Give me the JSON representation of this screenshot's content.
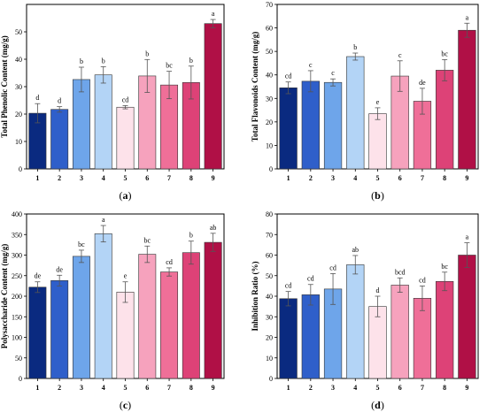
{
  "chart_data": [
    {
      "type": "bar",
      "panel_label": "(a)",
      "ylabel": "Total Phenolic Content (mg/g)",
      "categories": [
        "1",
        "2",
        "3",
        "4",
        "5",
        "6",
        "7",
        "8",
        "9"
      ],
      "values": [
        20.3,
        21.7,
        32.6,
        34.3,
        22.5,
        33.9,
        30.6,
        31.5,
        53.0
      ],
      "errors": [
        3.5,
        1.0,
        4.5,
        3.0,
        0.6,
        6.0,
        5.0,
        6.0,
        1.5
      ],
      "significance": [
        "d",
        "d",
        "b",
        "b",
        "cd",
        "b",
        "bc",
        "b",
        "a"
      ],
      "ylim": [
        0,
        60
      ],
      "yticks": [
        0,
        10,
        20,
        30,
        40,
        50
      ],
      "colors": [
        "#0a2a80",
        "#2f5fca",
        "#6ea5ea",
        "#b3d4f6",
        "#fde2ea",
        "#f6a2bd",
        "#ef6f98",
        "#dd4277",
        "#b01046"
      ]
    },
    {
      "type": "bar",
      "panel_label": "(b)",
      "ylabel": "Total Flavonoids Content (mg/g)",
      "categories": [
        "1",
        "2",
        "3",
        "4",
        "5",
        "6",
        "7",
        "8",
        "9"
      ],
      "values": [
        34.5,
        37.3,
        36.8,
        47.8,
        23.5,
        39.5,
        28.8,
        42.0,
        59.0
      ],
      "errors": [
        2.5,
        4.5,
        1.5,
        1.5,
        2.5,
        6.5,
        5.5,
        4.5,
        3.0
      ],
      "significance": [
        "cd",
        "c",
        "c",
        "b",
        "e",
        "c",
        "de",
        "bc",
        "a"
      ],
      "ylim": [
        0,
        70
      ],
      "yticks": [
        0,
        10,
        20,
        30,
        40,
        50,
        60,
        70
      ],
      "colors": [
        "#0a2a80",
        "#2f5fca",
        "#6ea5ea",
        "#b3d4f6",
        "#fde2ea",
        "#f6a2bd",
        "#ef6f98",
        "#dd4277",
        "#b01046"
      ]
    },
    {
      "type": "bar",
      "panel_label": "(c)",
      "ylabel": "Polysaccharide Content (mg/g)",
      "categories": [
        "1",
        "2",
        "3",
        "4",
        "5",
        "6",
        "7",
        "8",
        "9"
      ],
      "values": [
        222,
        238,
        297,
        352,
        210,
        302,
        259,
        306,
        331
      ],
      "errors": [
        13,
        13,
        15,
        20,
        25,
        20,
        10,
        28,
        22
      ],
      "significance": [
        "de",
        "de",
        "bc",
        "a",
        "e",
        "bc",
        "cd",
        "b",
        "ab"
      ],
      "ylim": [
        0,
        400
      ],
      "yticks": [
        0,
        50,
        100,
        150,
        200,
        250,
        300,
        350,
        400
      ],
      "colors": [
        "#0a2a80",
        "#2f5fca",
        "#6ea5ea",
        "#b3d4f6",
        "#fde2ea",
        "#f6a2bd",
        "#ef6f98",
        "#dd4277",
        "#b01046"
      ]
    },
    {
      "type": "bar",
      "panel_label": "(d)",
      "ylabel": "Inhibition Ratio (%)",
      "categories": [
        "1",
        "2",
        "3",
        "4",
        "5",
        "6",
        "7",
        "8",
        "9"
      ],
      "values": [
        38.8,
        40.7,
        43.5,
        55.3,
        35.0,
        45.4,
        39.0,
        47.2,
        60.0
      ],
      "errors": [
        3.5,
        5.0,
        7.5,
        4.5,
        5.0,
        3.5,
        6.0,
        4.5,
        6.0
      ],
      "significance": [
        "cd",
        "cd",
        "cd",
        "ab",
        "d",
        "bcd",
        "cd",
        "bc",
        "a"
      ],
      "ylim": [
        0,
        80
      ],
      "yticks": [
        0,
        10,
        20,
        30,
        40,
        50,
        60,
        70,
        80
      ],
      "colors": [
        "#0a2a80",
        "#2f5fca",
        "#6ea5ea",
        "#b3d4f6",
        "#fde2ea",
        "#f6a2bd",
        "#ef6f98",
        "#dd4277",
        "#b01046"
      ]
    }
  ]
}
